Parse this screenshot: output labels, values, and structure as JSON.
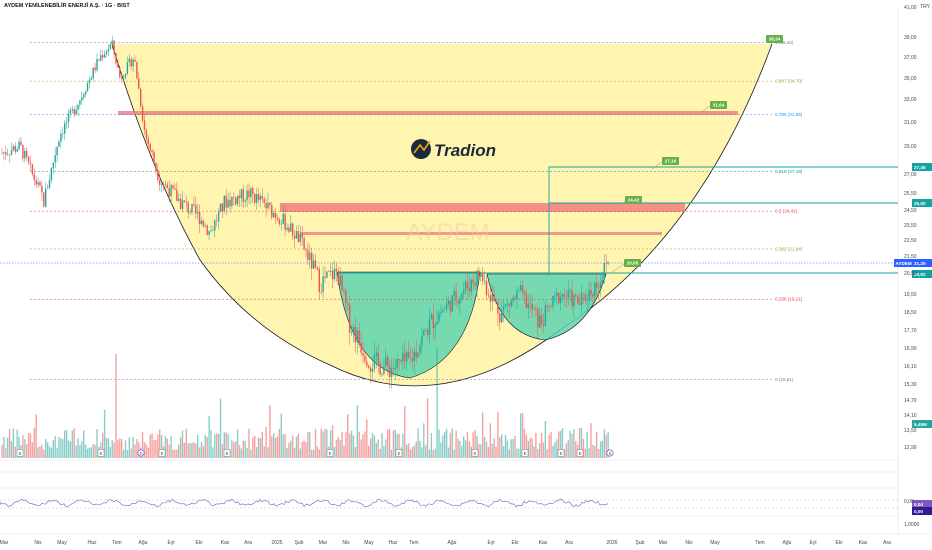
{
  "header": {
    "title": "AYDEM YENİLENEBİLİR ENERJİ A.Ş. · 1G · BIST",
    "currency": "TRY"
  },
  "watermark": {
    "logo": "Tradion",
    "symbol": "AYDEM"
  },
  "colors": {
    "bull": "#26a69a",
    "bear": "#ef5350",
    "fill_yellow": "#fff4a8",
    "cup_green": "#5fd3b0",
    "zone_red": "#f08080",
    "resist_teal": "#13a3a3",
    "rsi": "#7e57c2",
    "price_tag": "#2962ff",
    "tag_green": "#66b047"
  },
  "chart_data": {
    "type": "candlestick",
    "y_ticks": [
      "41,00",
      "39,00",
      "37,00",
      "35,00",
      "33,00",
      "31,00",
      "29,00",
      "27,00",
      "25,50",
      "24,50",
      "23,50",
      "22,50",
      "21,50",
      "20,50",
      "19,50",
      "18,50",
      "17,70",
      "16,90",
      "16,10",
      "15,30",
      "14,70",
      "14,10",
      "13,50",
      "12,90"
    ],
    "x_ticks": [
      "Mar",
      "Nis",
      "May",
      "Haz",
      "Tem",
      "Ağu",
      "Eyl",
      "Eki",
      "Kas",
      "Ara",
      "2025",
      "Şub",
      "Mar",
      "Nis",
      "May",
      "Haz",
      "Tem",
      "Ağu",
      "Eyl",
      "Eki",
      "Kas",
      "Ara",
      "2026",
      "Şub",
      "Mar",
      "Nis",
      "May",
      "Tem",
      "Ağu",
      "Eyl",
      "Eki",
      "Kas",
      "Ara"
    ],
    "fib_levels": [
      {
        "label": "1 (38,44)",
        "value": 38.44,
        "color": "#787b86"
      },
      {
        "label": "0,887 (34,70)",
        "value": 34.7,
        "color": "#9e9d24"
      },
      {
        "label": "0,786 (31,66)",
        "value": 31.66,
        "color": "#2196f3"
      },
      {
        "label": "0,618 (27,18)",
        "value": 27.18,
        "color": "#089981"
      },
      {
        "label": "0,5 (24,42)",
        "value": 24.42,
        "color": "#f23645"
      },
      {
        "label": "0,382 (21,94)",
        "value": 21.94,
        "color": "#9e9d24"
      },
      {
        "label": "0,236 (19,21)",
        "value": 19.21,
        "color": "#f23645"
      },
      {
        "label": "0 (15,51)",
        "value": 15.51,
        "color": "#787b86"
      }
    ],
    "targets": [
      "38,34",
      "31,64",
      "27,16",
      "24,42",
      "20,65"
    ],
    "price_tags": {
      "last_symbol": "AYDEM",
      "last_value": "21,26",
      "resist_1": "27,48",
      "resist_2": "25,00",
      "neck": "20,82"
    },
    "volume_value": "5,45M",
    "rsi_ticks": [
      "0,00",
      "1,0000"
    ],
    "rsi_values": [
      "0,04",
      "0,00"
    ],
    "event_markers": [
      "E",
      "E",
      "D",
      "E",
      "E",
      "E",
      "E",
      "E",
      "E",
      "E",
      "E",
      "S"
    ]
  }
}
